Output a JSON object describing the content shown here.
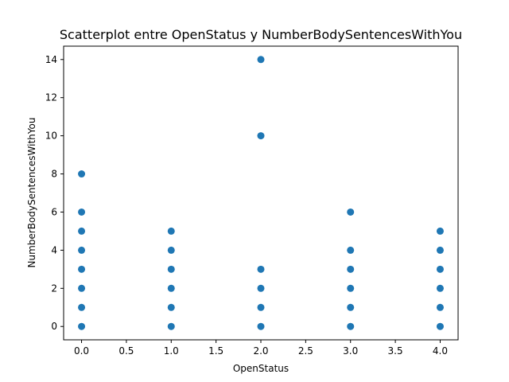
{
  "chart_data": {
    "type": "scatter",
    "title": "Scatterplot entre OpenStatus y NumberBodySentencesWithYou",
    "xlabel": "OpenStatus",
    "ylabel": "NumberBodySentencesWithYou",
    "xlim": [
      -0.2,
      4.2
    ],
    "ylim": [
      -0.7,
      14.7
    ],
    "xticks": [
      0.0,
      0.5,
      1.0,
      1.5,
      2.0,
      2.5,
      3.0,
      3.5,
      4.0
    ],
    "xtick_labels": [
      "0.0",
      "0.5",
      "1.0",
      "1.5",
      "2.0",
      "2.5",
      "3.0",
      "3.5",
      "4.0"
    ],
    "yticks": [
      0,
      2,
      4,
      6,
      8,
      10,
      12,
      14
    ],
    "ytick_labels": [
      "0",
      "2",
      "4",
      "6",
      "8",
      "10",
      "12",
      "14"
    ],
    "grid": false,
    "marker_color": "#1f77b4",
    "points": [
      {
        "x": 0,
        "y": 0
      },
      {
        "x": 0,
        "y": 1
      },
      {
        "x": 0,
        "y": 2
      },
      {
        "x": 0,
        "y": 3
      },
      {
        "x": 0,
        "y": 4
      },
      {
        "x": 0,
        "y": 5
      },
      {
        "x": 0,
        "y": 6
      },
      {
        "x": 0,
        "y": 8
      },
      {
        "x": 1,
        "y": 0
      },
      {
        "x": 1,
        "y": 1
      },
      {
        "x": 1,
        "y": 2
      },
      {
        "x": 1,
        "y": 3
      },
      {
        "x": 1,
        "y": 4
      },
      {
        "x": 1,
        "y": 5
      },
      {
        "x": 2,
        "y": 0
      },
      {
        "x": 2,
        "y": 1
      },
      {
        "x": 2,
        "y": 2
      },
      {
        "x": 2,
        "y": 3
      },
      {
        "x": 2,
        "y": 10
      },
      {
        "x": 2,
        "y": 14
      },
      {
        "x": 3,
        "y": 0
      },
      {
        "x": 3,
        "y": 1
      },
      {
        "x": 3,
        "y": 2
      },
      {
        "x": 3,
        "y": 3
      },
      {
        "x": 3,
        "y": 4
      },
      {
        "x": 3,
        "y": 6
      },
      {
        "x": 4,
        "y": 0
      },
      {
        "x": 4,
        "y": 1
      },
      {
        "x": 4,
        "y": 2
      },
      {
        "x": 4,
        "y": 3
      },
      {
        "x": 4,
        "y": 4
      },
      {
        "x": 4,
        "y": 5
      }
    ]
  }
}
